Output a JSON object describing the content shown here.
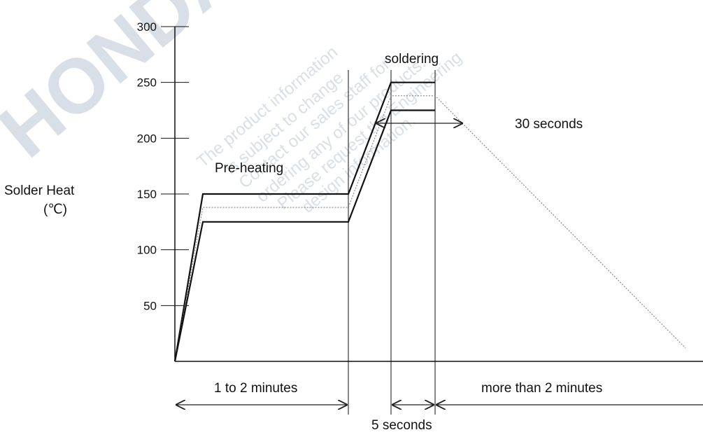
{
  "watermark": {
    "large": "HONDA",
    "lines": [
      "The product information",
      "is subject to change",
      "Contact our sales staff for",
      "ordering any of our products.",
      "Please request the Engineering",
      "design information."
    ]
  },
  "chart_data": {
    "type": "line",
    "ylabel": "Solder Heat",
    "yunit": "(℃)",
    "yticks": [
      50,
      100,
      150,
      200,
      250,
      300
    ],
    "ylim": [
      0,
      300
    ],
    "series": [
      {
        "values": [
          [
            0,
            0
          ],
          [
            1,
            150
          ],
          [
            2,
            150
          ],
          [
            3,
            250
          ],
          [
            4,
            250
          ]
        ]
      },
      {
        "values": [
          [
            0,
            0
          ],
          [
            1,
            138
          ],
          [
            2,
            138
          ],
          [
            3,
            238
          ],
          [
            4,
            238
          ],
          [
            5,
            12
          ]
        ]
      },
      {
        "values": [
          [
            0,
            0
          ],
          [
            1,
            125
          ],
          [
            2,
            125
          ],
          [
            3,
            225
          ],
          [
            4,
            225
          ]
        ]
      }
    ],
    "annotations": {
      "preheat": "Pre-heating",
      "soldering": "soldering",
      "thirty": "30 seconds",
      "preheat_time": "1 to 2 minutes",
      "solder_time": "5 seconds",
      "cool_time": "more than 2 minutes"
    }
  }
}
